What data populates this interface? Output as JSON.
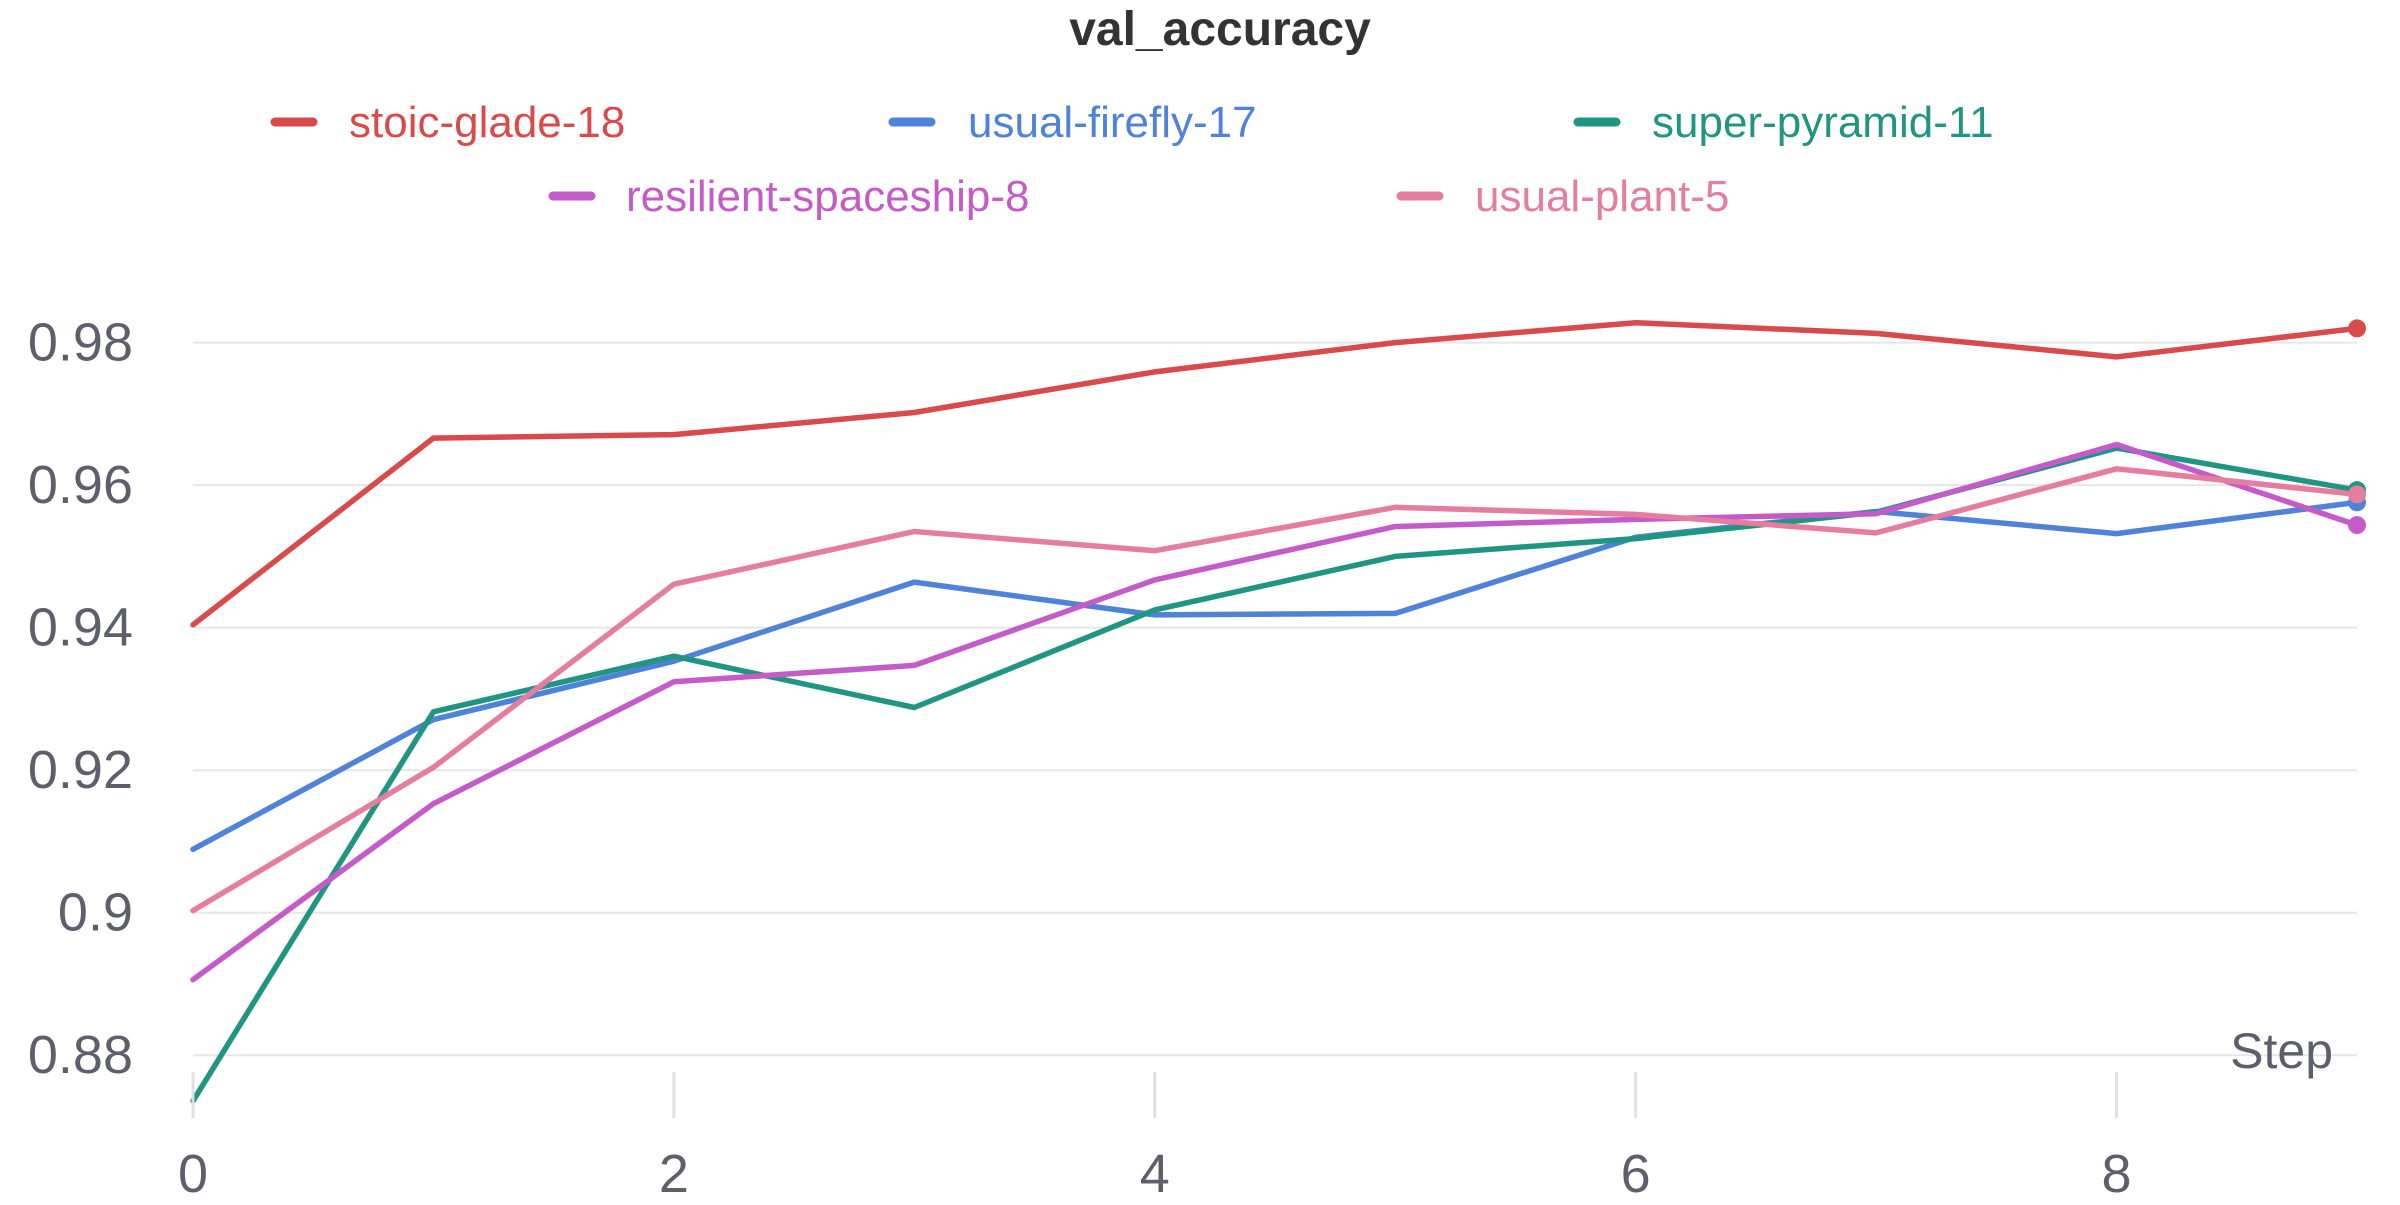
{
  "chart_data": {
    "type": "line",
    "title": "val_accuracy",
    "xlabel": "Step",
    "ylabel": "",
    "xlim": [
      0,
      9
    ],
    "ylim": [
      0.874,
      0.993
    ],
    "x_ticks": [
      0,
      2,
      4,
      6,
      8
    ],
    "y_ticks": [
      0.88,
      0.9,
      0.92,
      0.94,
      0.96,
      0.98
    ],
    "x_tick_labels": [
      "0",
      "2",
      "4",
      "6",
      "8"
    ],
    "y_tick_labels": [
      "0.88",
      "0.9",
      "0.92",
      "0.94",
      "0.96",
      "0.98"
    ],
    "grid": true,
    "legend_position": "top",
    "x": [
      0,
      1,
      2,
      3,
      4,
      5,
      6,
      7,
      8,
      9
    ],
    "series": [
      {
        "name": "stoic-glade-18",
        "color": "#d94a4a",
        "values": [
          0.9404,
          0.9666,
          0.9671,
          0.9702,
          0.9759,
          0.98,
          0.9828,
          0.9813,
          0.978,
          0.982
        ]
      },
      {
        "name": "usual-firefly-17",
        "color": "#4f82d9",
        "values": [
          0.9089,
          0.9271,
          0.9353,
          0.9464,
          0.9418,
          0.942,
          0.9527,
          0.9563,
          0.9532,
          0.9576
        ]
      },
      {
        "name": "super-pyramid-11",
        "color": "#1f9582",
        "values": [
          0.8736,
          0.9282,
          0.936,
          0.9288,
          0.9425,
          0.95,
          0.9525,
          0.9562,
          0.9652,
          0.9593
        ]
      },
      {
        "name": "resilient-spaceship-8",
        "color": "#c45bc8",
        "values": [
          0.8906,
          0.9153,
          0.9324,
          0.9347,
          0.9467,
          0.9542,
          0.9552,
          0.956,
          0.9657,
          0.9544
        ]
      },
      {
        "name": "usual-plant-5",
        "color": "#e57da0",
        "values": [
          0.9003,
          0.9204,
          0.9461,
          0.9535,
          0.9508,
          0.9569,
          0.9559,
          0.9533,
          0.9623,
          0.9587
        ]
      }
    ]
  }
}
